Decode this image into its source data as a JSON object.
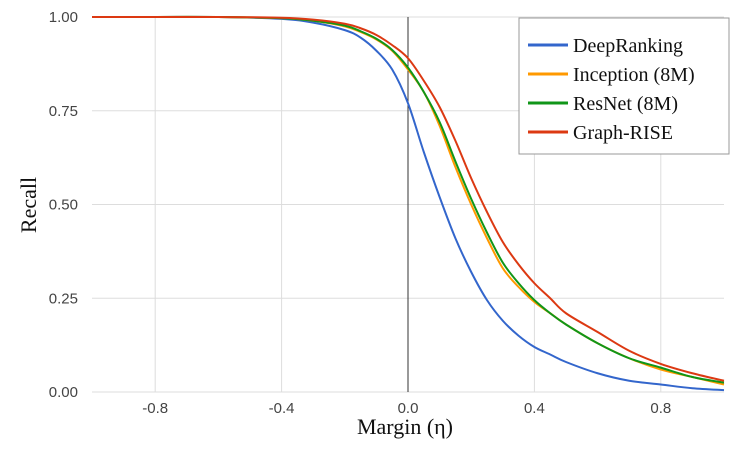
{
  "chart_data": {
    "type": "line",
    "title": "",
    "xlabel": "Margin (η)",
    "ylabel": "Recall",
    "xlim": [
      -1.0,
      1.0
    ],
    "ylim": [
      0.0,
      1.0
    ],
    "grid": true,
    "legend_position": "top-right",
    "x_ticks": [
      {
        "value": -0.8,
        "label": "-0.8"
      },
      {
        "value": -0.4,
        "label": "-0.4"
      },
      {
        "value": 0.0,
        "label": "0.0"
      },
      {
        "value": 0.4,
        "label": "0.4"
      },
      {
        "value": 0.8,
        "label": "0.8"
      }
    ],
    "y_ticks": [
      {
        "value": 0.0,
        "label": "0.00"
      },
      {
        "value": 0.25,
        "label": "0.25"
      },
      {
        "value": 0.5,
        "label": "0.50"
      },
      {
        "value": 0.75,
        "label": "0.75"
      },
      {
        "value": 1.0,
        "label": "1.00"
      }
    ],
    "x": [
      -1.0,
      -0.8,
      -0.6,
      -0.4,
      -0.3,
      -0.2,
      -0.15,
      -0.1,
      -0.05,
      0.0,
      0.05,
      0.1,
      0.15,
      0.2,
      0.25,
      0.3,
      0.35,
      0.4,
      0.45,
      0.5,
      0.6,
      0.7,
      0.8,
      0.9,
      1.0
    ],
    "series": [
      {
        "name": "DeepRanking",
        "color": "#3366cc",
        "values": [
          1.0,
          1.0,
          1.0,
          0.995,
          0.985,
          0.965,
          0.945,
          0.91,
          0.86,
          0.77,
          0.64,
          0.52,
          0.41,
          0.32,
          0.245,
          0.19,
          0.15,
          0.12,
          0.1,
          0.08,
          0.05,
          0.03,
          0.02,
          0.01,
          0.005
        ]
      },
      {
        "name": "Inception (8M)",
        "color": "#ff9900",
        "values": [
          1.0,
          1.0,
          1.0,
          0.997,
          0.99,
          0.975,
          0.96,
          0.94,
          0.91,
          0.86,
          0.8,
          0.71,
          0.6,
          0.5,
          0.41,
          0.33,
          0.28,
          0.24,
          0.21,
          0.18,
          0.13,
          0.09,
          0.06,
          0.04,
          0.02
        ]
      },
      {
        "name": "ResNet (8M)",
        "color": "#109618",
        "values": [
          1.0,
          1.0,
          1.0,
          0.997,
          0.99,
          0.977,
          0.962,
          0.942,
          0.912,
          0.865,
          0.8,
          0.72,
          0.615,
          0.515,
          0.425,
          0.345,
          0.29,
          0.245,
          0.21,
          0.18,
          0.13,
          0.09,
          0.065,
          0.04,
          0.025
        ]
      },
      {
        "name": "Graph-RISE",
        "color": "#dc3912",
        "values": [
          1.0,
          1.0,
          1.0,
          0.998,
          0.993,
          0.982,
          0.97,
          0.952,
          0.925,
          0.89,
          0.83,
          0.76,
          0.67,
          0.57,
          0.48,
          0.4,
          0.34,
          0.29,
          0.25,
          0.21,
          0.16,
          0.11,
          0.075,
          0.05,
          0.03
        ]
      }
    ]
  }
}
